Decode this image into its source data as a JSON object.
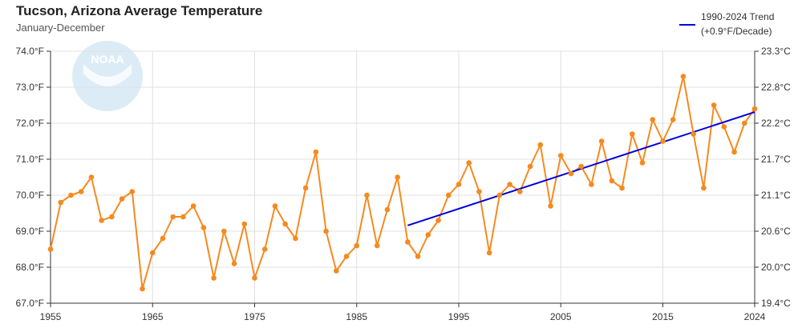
{
  "header": {
    "title": "Tucson, Arizona Average Temperature",
    "subtitle": "January-December"
  },
  "legend": {
    "line1": "1990-2024 Trend",
    "line2": "(+0.9°F/Decade)"
  },
  "logo": {
    "text": "NOAA"
  },
  "colors": {
    "series": "#f58a1f",
    "trend": "#0000dd",
    "grid": "#e0e0e0",
    "axis": "#333333",
    "logo": "#dcecf7"
  },
  "chart_data": {
    "type": "line",
    "title": "Tucson, Arizona Average Temperature",
    "subtitle": "January-December",
    "xlim": [
      1955,
      2024
    ],
    "ylim": [
      67.0,
      74.0
    ],
    "x_ticks": [
      1955,
      1965,
      1975,
      1985,
      1995,
      2005,
      2015,
      2024
    ],
    "y_ticks_left": [
      "67.0°F",
      "68.0°F",
      "69.0°F",
      "70.0°F",
      "71.0°F",
      "72.0°F",
      "73.0°F",
      "74.0°F"
    ],
    "y_ticks_right": [
      "19.4°C",
      "20.0°C",
      "20.6°C",
      "21.1°C",
      "21.7°C",
      "22.2°C",
      "22.8°C",
      "23.3°C"
    ],
    "grid": true,
    "legend_position": "top-right",
    "series": [
      {
        "x": [
          1955,
          1956,
          1957,
          1958,
          1959,
          1960,
          1961,
          1962,
          1963,
          1964,
          1965,
          1966,
          1967,
          1968,
          1969,
          1970,
          1971,
          1972,
          1973,
          1974,
          1975,
          1976,
          1977,
          1978,
          1979,
          1980,
          1981,
          1982,
          1983,
          1984,
          1985,
          1986,
          1987,
          1988,
          1989,
          1990,
          1991,
          1992,
          1993,
          1994,
          1995,
          1996,
          1997,
          1998,
          1999,
          2000,
          2001,
          2002,
          2003,
          2004,
          2005,
          2006,
          2007,
          2008,
          2009,
          2010,
          2011,
          2012,
          2013,
          2014,
          2015,
          2016,
          2017,
          2018,
          2019,
          2020,
          2021,
          2022,
          2023,
          2024
        ],
        "values": [
          68.5,
          69.8,
          70.0,
          70.1,
          70.5,
          69.3,
          69.4,
          69.9,
          70.1,
          67.4,
          68.4,
          68.8,
          69.4,
          69.4,
          69.7,
          69.1,
          67.7,
          69.0,
          68.1,
          69.2,
          67.7,
          68.5,
          69.7,
          69.2,
          68.8,
          70.2,
          71.2,
          69.0,
          67.9,
          68.3,
          68.6,
          70.0,
          68.6,
          69.6,
          70.5,
          68.7,
          68.3,
          68.9,
          69.3,
          70.0,
          70.3,
          70.9,
          70.1,
          68.4,
          70.0,
          70.3,
          70.1,
          70.8,
          71.4,
          69.7,
          71.1,
          70.6,
          70.8,
          70.3,
          71.5,
          70.4,
          70.2,
          71.7,
          70.9,
          72.1,
          71.5,
          72.1,
          73.3,
          71.7,
          70.2,
          72.5,
          71.9,
          71.2,
          72.0,
          72.4
        ]
      },
      {
        "name": "1990-2024 Trend (+0.9°F/Decade)",
        "x": [
          1990,
          2024
        ],
        "values": [
          69.16,
          72.31
        ]
      }
    ]
  }
}
